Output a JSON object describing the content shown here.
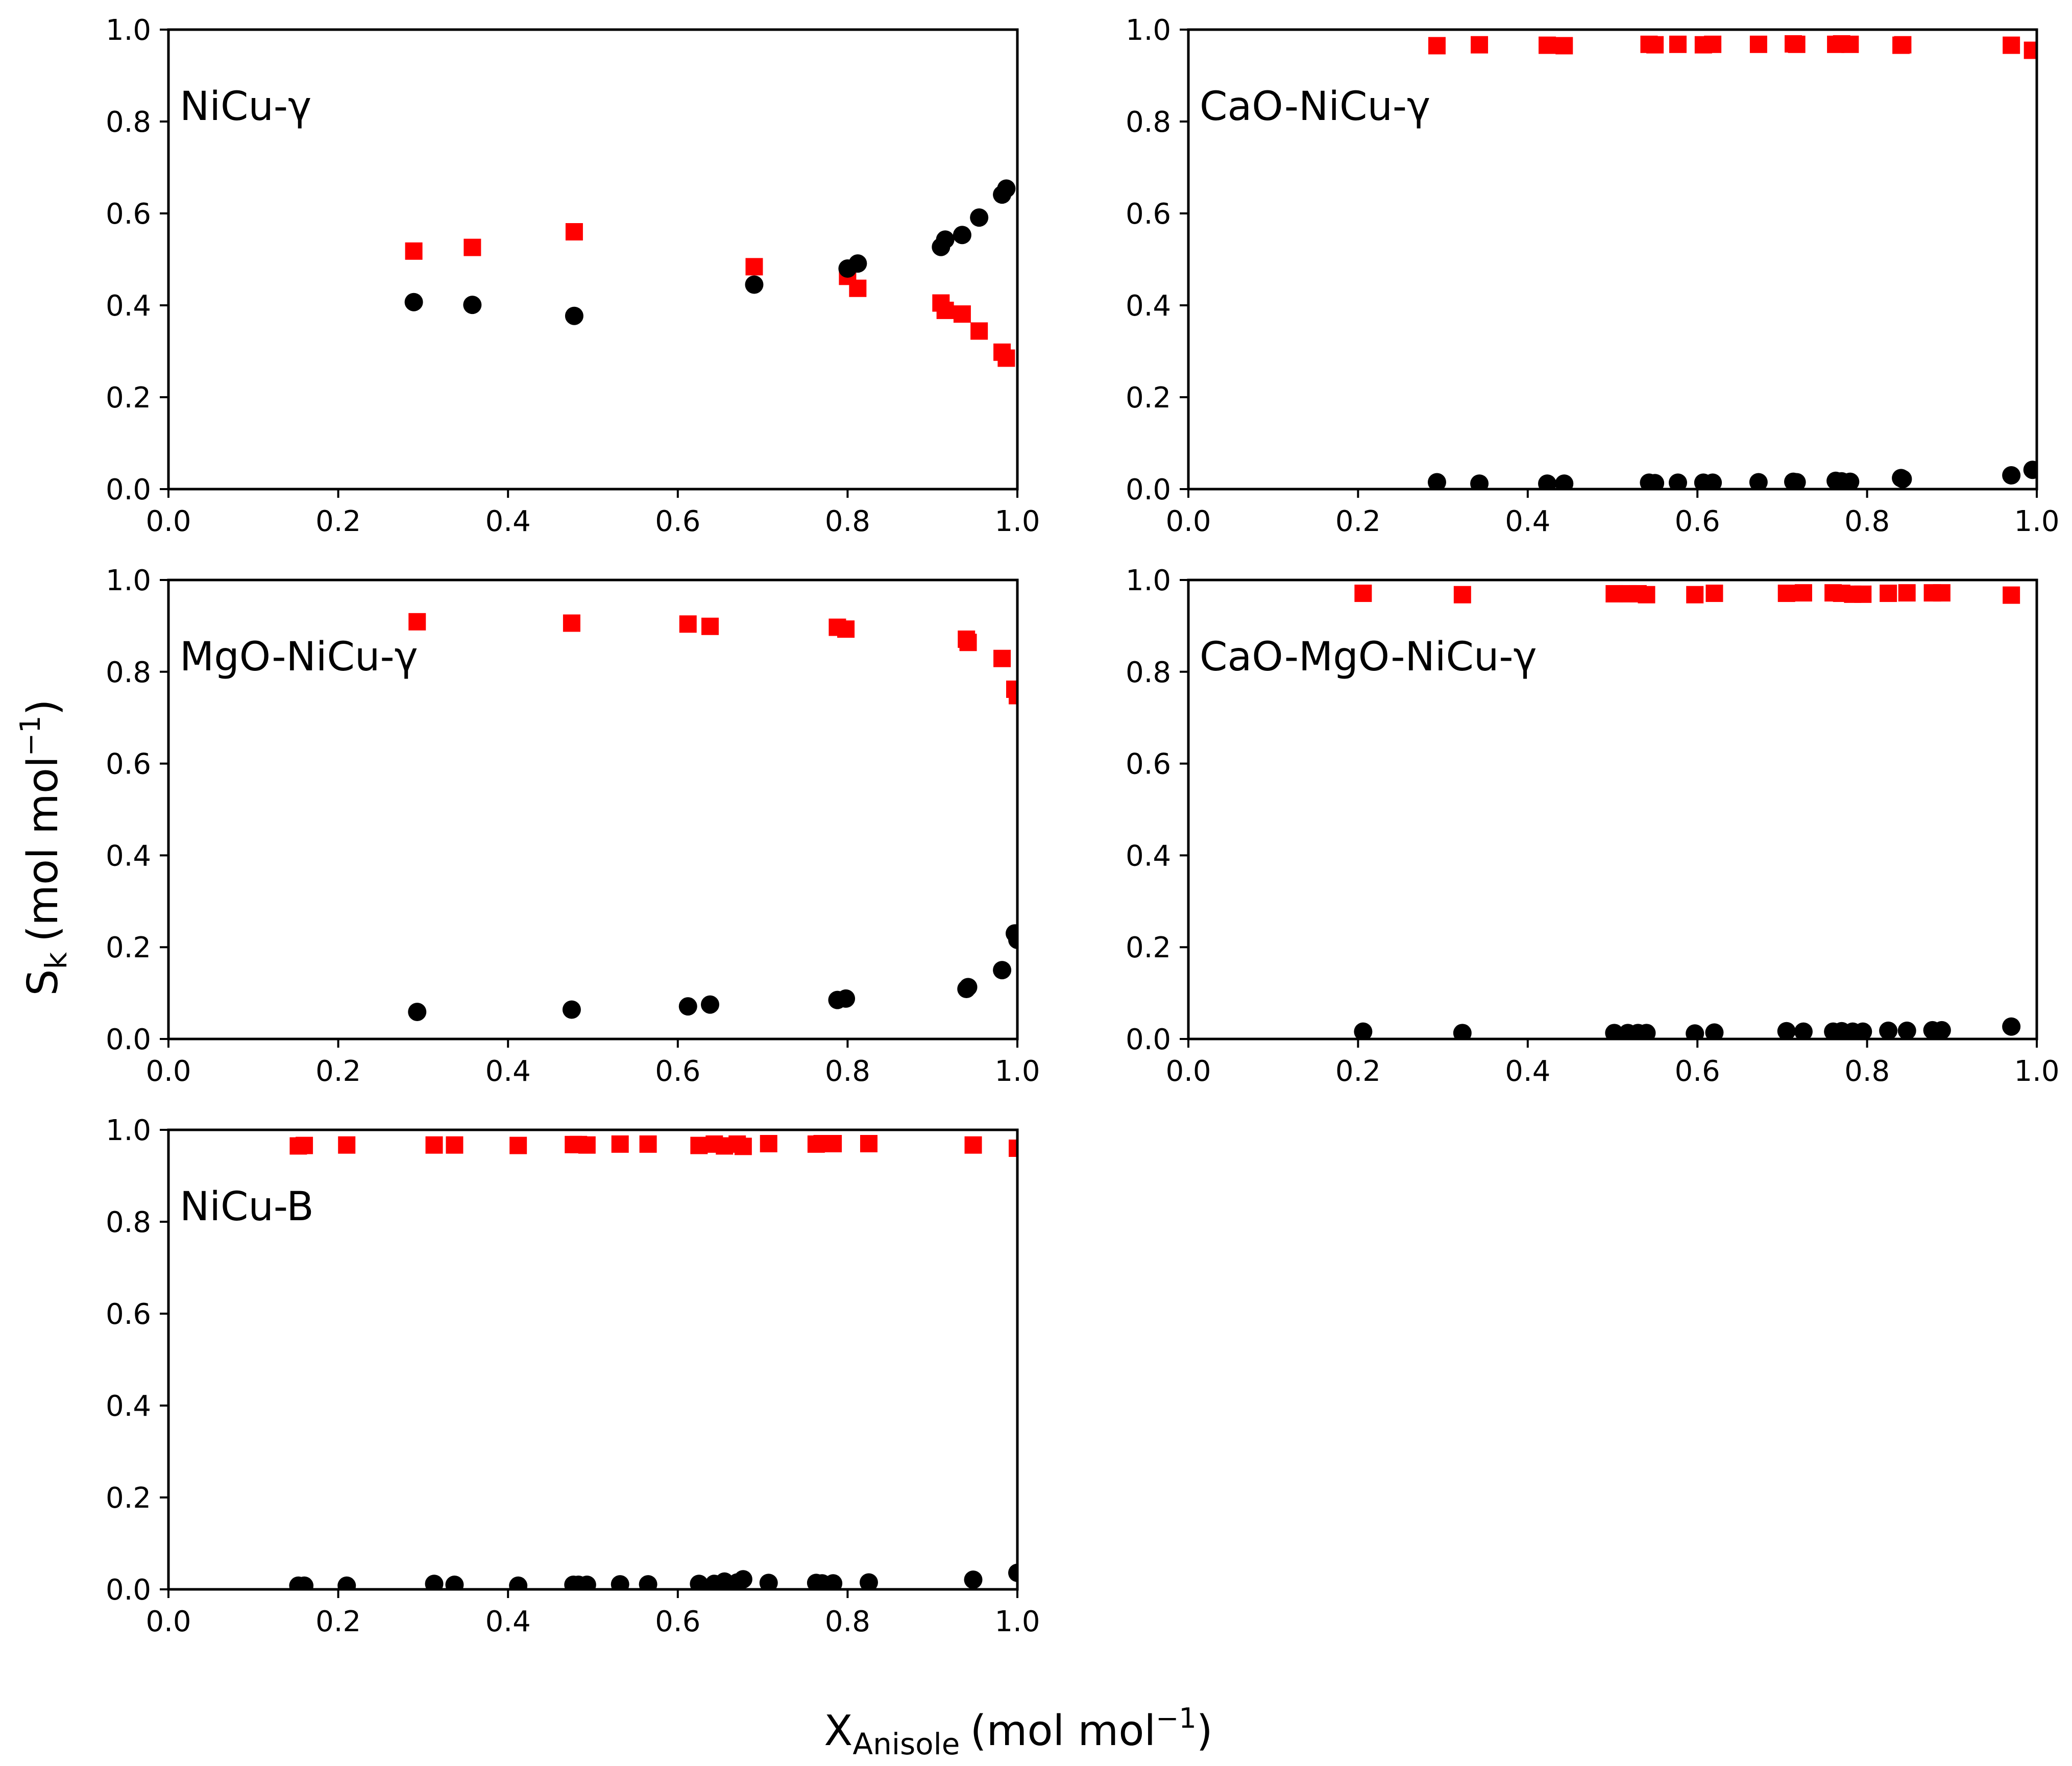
{
  "figure": {
    "ylabel_main": "S",
    "ylabel_sub": "k",
    "ylabel_unit": "(mol mol",
    "ylabel_sup": "−1",
    "ylabel_close": ")",
    "xlabel_main": "X",
    "xlabel_sub": "Anisole",
    "xlabel_unit": "(mol mol",
    "xlabel_sup": "−1",
    "xlabel_close": ")"
  },
  "colors": {
    "series_square": "#ff0000",
    "series_circle": "#000000",
    "axes": "#000000"
  },
  "chart_data": [
    {
      "type": "scatter",
      "title": "NiCu-γ",
      "xlim": [
        0.0,
        1.0
      ],
      "ylim": [
        0.0,
        1.0
      ],
      "xticks": [
        "0.0",
        "0.2",
        "0.4",
        "0.6",
        "0.8",
        "1.0"
      ],
      "yticks": [
        "0.0",
        "0.2",
        "0.4",
        "0.6",
        "0.8",
        "1.0"
      ],
      "series": [
        {
          "name": "red squares",
          "marker": "square",
          "x": [
            0.289,
            0.358,
            0.478,
            0.69,
            0.8,
            0.812,
            0.91,
            0.915,
            0.935,
            0.955,
            0.982,
            0.987
          ],
          "y": [
            0.518,
            0.526,
            0.56,
            0.484,
            0.463,
            0.437,
            0.405,
            0.389,
            0.381,
            0.344,
            0.298,
            0.285
          ]
        },
        {
          "name": "black circles",
          "marker": "circle",
          "x": [
            0.289,
            0.358,
            0.478,
            0.69,
            0.8,
            0.812,
            0.91,
            0.915,
            0.935,
            0.955,
            0.982,
            0.987
          ],
          "y": [
            0.407,
            0.401,
            0.377,
            0.445,
            0.48,
            0.491,
            0.527,
            0.543,
            0.553,
            0.591,
            0.641,
            0.654
          ]
        }
      ]
    },
    {
      "type": "scatter",
      "title": "CaO-NiCu-γ",
      "xlim": [
        0.0,
        1.0
      ],
      "ylim": [
        0.0,
        1.0
      ],
      "xticks": [
        "0.0",
        "0.2",
        "0.4",
        "0.6",
        "0.8",
        "1.0"
      ],
      "yticks": [
        "0.0",
        "0.2",
        "0.4",
        "0.6",
        "0.8",
        "1.0"
      ],
      "series": [
        {
          "name": "red squares",
          "marker": "square",
          "x": [
            0.293,
            0.343,
            0.423,
            0.443,
            0.543,
            0.55,
            0.577,
            0.607,
            0.618,
            0.672,
            0.713,
            0.717,
            0.763,
            0.77,
            0.78,
            0.84,
            0.842,
            0.97,
            0.995
          ],
          "y": [
            0.965,
            0.967,
            0.966,
            0.965,
            0.968,
            0.967,
            0.968,
            0.967,
            0.968,
            0.968,
            0.969,
            0.968,
            0.968,
            0.969,
            0.968,
            0.966,
            0.967,
            0.966,
            0.955
          ]
        },
        {
          "name": "black circles",
          "marker": "circle",
          "x": [
            0.293,
            0.343,
            0.423,
            0.443,
            0.543,
            0.55,
            0.577,
            0.607,
            0.618,
            0.672,
            0.713,
            0.717,
            0.763,
            0.77,
            0.78,
            0.84,
            0.842,
            0.97,
            0.995
          ],
          "y": [
            0.015,
            0.012,
            0.012,
            0.012,
            0.014,
            0.013,
            0.014,
            0.014,
            0.014,
            0.015,
            0.016,
            0.015,
            0.018,
            0.017,
            0.016,
            0.024,
            0.022,
            0.03,
            0.042
          ]
        }
      ]
    },
    {
      "type": "scatter",
      "title": "MgO-NiCu-γ",
      "xlim": [
        0.0,
        1.0
      ],
      "ylim": [
        0.0,
        1.0
      ],
      "xticks": [
        "0.0",
        "0.2",
        "0.4",
        "0.6",
        "0.8",
        "1.0"
      ],
      "yticks": [
        "0.0",
        "0.2",
        "0.4",
        "0.6",
        "0.8",
        "1.0"
      ],
      "series": [
        {
          "name": "red squares",
          "marker": "square",
          "x": [
            0.293,
            0.475,
            0.612,
            0.638,
            0.788,
            0.798,
            0.94,
            0.942,
            0.982,
            0.997,
            1.0
          ],
          "y": [
            0.909,
            0.906,
            0.904,
            0.899,
            0.897,
            0.893,
            0.871,
            0.864,
            0.829,
            0.762,
            0.748
          ]
        },
        {
          "name": "black circles",
          "marker": "circle",
          "x": [
            0.293,
            0.475,
            0.612,
            0.638,
            0.788,
            0.798,
            0.94,
            0.942,
            0.982,
            0.997,
            1.0
          ],
          "y": [
            0.059,
            0.064,
            0.071,
            0.075,
            0.085,
            0.088,
            0.109,
            0.113,
            0.15,
            0.23,
            0.216
          ]
        }
      ]
    },
    {
      "type": "scatter",
      "title": "CaO-MgO-NiCu-γ",
      "xlim": [
        0.0,
        1.0
      ],
      "ylim": [
        0.0,
        1.0
      ],
      "xticks": [
        "0.0",
        "0.2",
        "0.4",
        "0.6",
        "0.8",
        "1.0"
      ],
      "yticks": [
        "0.0",
        "0.2",
        "0.4",
        "0.6",
        "0.8",
        "1.0"
      ],
      "series": [
        {
          "name": "red squares",
          "marker": "square",
          "x": [
            0.206,
            0.323,
            0.502,
            0.518,
            0.53,
            0.54,
            0.597,
            0.62,
            0.705,
            0.725,
            0.76,
            0.77,
            0.783,
            0.795,
            0.825,
            0.847,
            0.877,
            0.888,
            0.97
          ],
          "y": [
            0.971,
            0.968,
            0.97,
            0.97,
            0.97,
            0.968,
            0.968,
            0.971,
            0.971,
            0.972,
            0.972,
            0.971,
            0.969,
            0.969,
            0.971,
            0.972,
            0.972,
            0.972,
            0.967
          ]
        },
        {
          "name": "black circles",
          "marker": "circle",
          "x": [
            0.206,
            0.323,
            0.502,
            0.518,
            0.53,
            0.54,
            0.597,
            0.62,
            0.705,
            0.725,
            0.76,
            0.77,
            0.783,
            0.795,
            0.825,
            0.847,
            0.877,
            0.888,
            0.97
          ],
          "y": [
            0.016,
            0.013,
            0.013,
            0.013,
            0.013,
            0.013,
            0.012,
            0.014,
            0.017,
            0.016,
            0.016,
            0.017,
            0.016,
            0.016,
            0.018,
            0.018,
            0.019,
            0.019,
            0.027
          ]
        }
      ]
    },
    {
      "type": "scatter",
      "title": "NiCu-B",
      "xlim": [
        0.0,
        1.0
      ],
      "ylim": [
        0.0,
        1.0
      ],
      "xticks": [
        "0.0",
        "0.2",
        "0.4",
        "0.6",
        "0.8",
        "1.0"
      ],
      "yticks": [
        "0.0",
        "0.2",
        "0.4",
        "0.6",
        "0.8",
        "1.0"
      ],
      "series": [
        {
          "name": "red squares",
          "marker": "square",
          "x": [
            0.153,
            0.16,
            0.21,
            0.313,
            0.337,
            0.412,
            0.477,
            0.483,
            0.493,
            0.532,
            0.565,
            0.625,
            0.643,
            0.655,
            0.67,
            0.677,
            0.707,
            0.763,
            0.77,
            0.783,
            0.825,
            0.948,
            1.0
          ],
          "y": [
            0.965,
            0.966,
            0.967,
            0.967,
            0.967,
            0.966,
            0.968,
            0.968,
            0.967,
            0.969,
            0.969,
            0.966,
            0.969,
            0.965,
            0.969,
            0.964,
            0.97,
            0.969,
            0.97,
            0.97,
            0.97,
            0.967,
            0.96
          ]
        },
        {
          "name": "black circles",
          "marker": "circle",
          "x": [
            0.153,
            0.16,
            0.21,
            0.313,
            0.337,
            0.412,
            0.477,
            0.483,
            0.493,
            0.532,
            0.565,
            0.625,
            0.643,
            0.655,
            0.67,
            0.677,
            0.707,
            0.763,
            0.77,
            0.783,
            0.825,
            0.948,
            1.0
          ],
          "y": [
            0.008,
            0.008,
            0.008,
            0.012,
            0.01,
            0.008,
            0.01,
            0.01,
            0.01,
            0.011,
            0.011,
            0.012,
            0.012,
            0.017,
            0.015,
            0.022,
            0.014,
            0.014,
            0.013,
            0.013,
            0.015,
            0.021,
            0.036
          ]
        }
      ]
    }
  ]
}
